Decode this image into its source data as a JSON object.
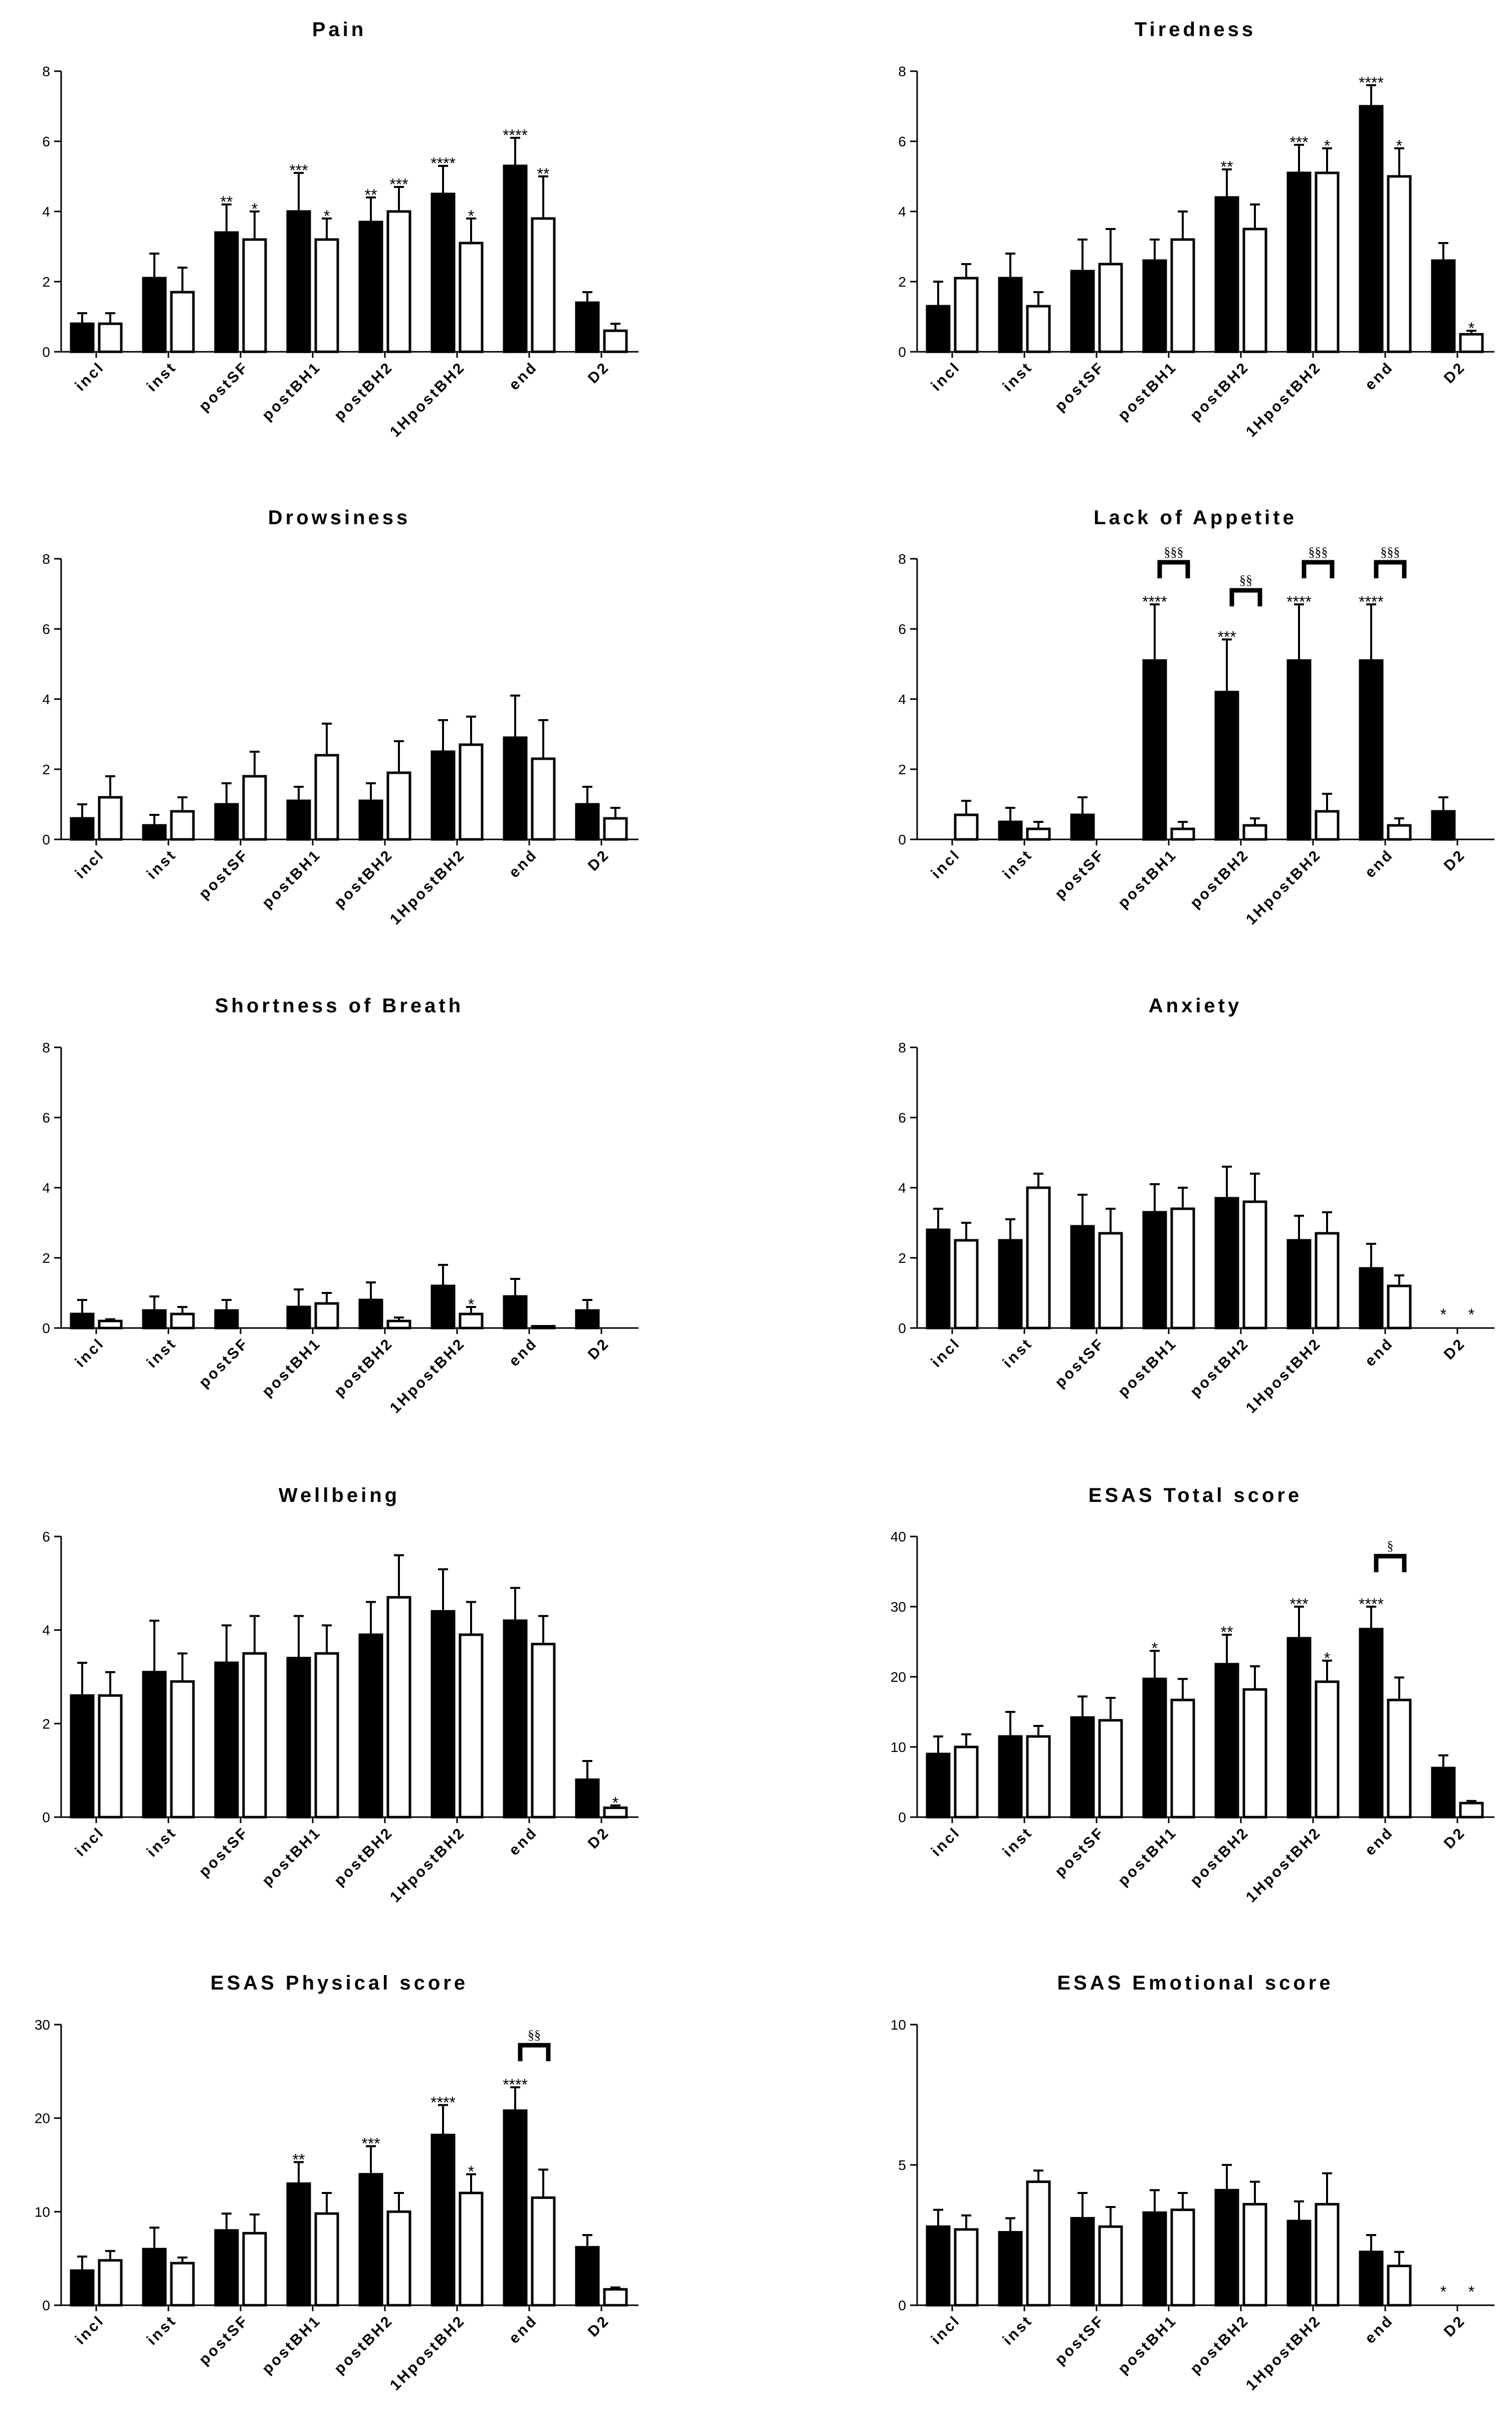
{
  "chart_data": [
    {
      "type": "bar",
      "title": "Pain",
      "categories": [
        "incl",
        "inst",
        "postSF",
        "postBH1",
        "postBH2",
        "1HpostBH2",
        "end",
        "D2"
      ],
      "ylim": [
        0,
        8
      ],
      "yticks": [
        "0",
        "2",
        "4",
        "6",
        "8"
      ],
      "series": [
        {
          "name": "filled",
          "values": [
            0.8,
            2.1,
            3.4,
            4.0,
            3.7,
            4.5,
            5.3,
            1.4
          ],
          "errors": [
            0.3,
            0.7,
            0.8,
            1.1,
            0.7,
            0.8,
            0.8,
            0.3
          ],
          "marks": [
            "",
            "",
            "**",
            "***",
            "**",
            "****",
            "****",
            ""
          ]
        },
        {
          "name": "open",
          "values": [
            0.8,
            1.7,
            3.2,
            3.2,
            4.0,
            3.1,
            3.8,
            0.6
          ],
          "errors": [
            0.3,
            0.7,
            0.8,
            0.6,
            0.7,
            0.7,
            1.2,
            0.2
          ],
          "marks": [
            "",
            "",
            "*",
            "*",
            "***",
            "*",
            "**",
            ""
          ]
        }
      ],
      "brackets": []
    },
    {
      "type": "bar",
      "title": "Tiredness",
      "categories": [
        "incl",
        "inst",
        "postSF",
        "postBH1",
        "postBH2",
        "1HpostBH2",
        "end",
        "D2"
      ],
      "ylim": [
        0,
        8
      ],
      "yticks": [
        "0",
        "2",
        "4",
        "6",
        "8"
      ],
      "series": [
        {
          "name": "filled",
          "values": [
            1.3,
            2.1,
            2.3,
            2.6,
            4.4,
            5.1,
            7.0,
            2.6
          ],
          "errors": [
            0.7,
            0.7,
            0.9,
            0.6,
            0.8,
            0.8,
            0.6,
            0.5
          ],
          "marks": [
            "",
            "",
            "",
            "",
            "**",
            "***",
            "****",
            ""
          ]
        },
        {
          "name": "open",
          "values": [
            2.1,
            1.3,
            2.5,
            3.2,
            3.5,
            5.1,
            5.0,
            0.5
          ],
          "errors": [
            0.4,
            0.4,
            1.0,
            0.8,
            0.7,
            0.7,
            0.8,
            0.1
          ],
          "marks": [
            "",
            "",
            "",
            "",
            "",
            "*",
            "*",
            "*"
          ]
        }
      ],
      "brackets": []
    },
    {
      "type": "bar",
      "title": "Drowsiness",
      "categories": [
        "incl",
        "inst",
        "postSF",
        "postBH1",
        "postBH2",
        "1HpostBH2",
        "end",
        "D2"
      ],
      "ylim": [
        0,
        8
      ],
      "yticks": [
        "0",
        "2",
        "4",
        "6",
        "8"
      ],
      "series": [
        {
          "name": "filled",
          "values": [
            0.6,
            0.4,
            1.0,
            1.1,
            1.1,
            2.5,
            2.9,
            1.0
          ],
          "errors": [
            0.4,
            0.3,
            0.6,
            0.4,
            0.5,
            0.9,
            1.2,
            0.5
          ],
          "marks": [
            "",
            "",
            "",
            "",
            "",
            "",
            "",
            ""
          ]
        },
        {
          "name": "open",
          "values": [
            1.2,
            0.8,
            1.8,
            2.4,
            1.9,
            2.7,
            2.3,
            0.6
          ],
          "errors": [
            0.6,
            0.4,
            0.7,
            0.9,
            0.9,
            0.8,
            1.1,
            0.3
          ],
          "marks": [
            "",
            "",
            "",
            "",
            "",
            "",
            "",
            ""
          ]
        }
      ],
      "brackets": []
    },
    {
      "type": "bar",
      "title": "Lack of Appetite",
      "categories": [
        "incl",
        "inst",
        "postSF",
        "postBH1",
        "postBH2",
        "1HpostBH2",
        "end",
        "D2"
      ],
      "ylim": [
        0,
        8
      ],
      "yticks": [
        "0",
        "2",
        "4",
        "6",
        "8"
      ],
      "series": [
        {
          "name": "filled",
          "values": [
            0.0,
            0.5,
            0.7,
            5.1,
            4.2,
            5.1,
            5.1,
            0.8
          ],
          "errors": [
            0.0,
            0.4,
            0.5,
            1.6,
            1.5,
            1.6,
            1.6,
            0.4
          ],
          "marks": [
            "",
            "",
            "",
            "****",
            "***",
            "****",
            "****",
            ""
          ]
        },
        {
          "name": "open",
          "values": [
            0.7,
            0.3,
            0.0,
            0.3,
            0.4,
            0.8,
            0.4,
            0.0
          ],
          "errors": [
            0.4,
            0.2,
            0.0,
            0.2,
            0.2,
            0.5,
            0.2,
            0.0
          ],
          "marks": [
            "",
            "",
            "",
            "",
            "",
            "",
            "",
            ""
          ]
        }
      ],
      "brackets": [
        {
          "category": 3,
          "value": 7.9,
          "label": "§§§"
        },
        {
          "category": 4,
          "value": 7.1,
          "label": "§§"
        },
        {
          "category": 5,
          "value": 7.9,
          "label": "§§§"
        },
        {
          "category": 6,
          "value": 7.9,
          "label": "§§§"
        }
      ]
    },
    {
      "type": "bar",
      "title": "Shortness of Breath",
      "categories": [
        "incl",
        "inst",
        "postSF",
        "postBH1",
        "postBH2",
        "1HpostBH2",
        "end",
        "D2"
      ],
      "ylim": [
        0,
        8
      ],
      "yticks": [
        "0",
        "2",
        "4",
        "6",
        "8"
      ],
      "series": [
        {
          "name": "filled",
          "values": [
            0.4,
            0.5,
            0.5,
            0.6,
            0.8,
            1.2,
            0.9,
            0.5
          ],
          "errors": [
            0.4,
            0.4,
            0.3,
            0.5,
            0.5,
            0.6,
            0.5,
            0.3
          ],
          "marks": [
            "",
            "",
            "",
            "",
            "",
            "",
            "",
            ""
          ]
        },
        {
          "name": "open",
          "values": [
            0.2,
            0.4,
            0.0,
            0.7,
            0.2,
            0.4,
            0.05,
            0.0
          ],
          "errors": [
            0.05,
            0.2,
            0.0,
            0.3,
            0.1,
            0.2,
            0.0,
            0.0
          ],
          "marks": [
            "",
            "",
            "",
            "",
            "",
            "*",
            "",
            ""
          ]
        }
      ],
      "brackets": []
    },
    {
      "type": "bar",
      "title": "Anxiety",
      "categories": [
        "incl",
        "inst",
        "postSF",
        "postBH1",
        "postBH2",
        "1HpostBH2",
        "end",
        "D2"
      ],
      "ylim": [
        0,
        8
      ],
      "yticks": [
        "0",
        "2",
        "4",
        "6",
        "8"
      ],
      "series": [
        {
          "name": "filled",
          "values": [
            2.8,
            2.5,
            2.9,
            3.3,
            3.7,
            2.5,
            1.7,
            0.0
          ],
          "errors": [
            0.6,
            0.6,
            0.9,
            0.8,
            0.9,
            0.7,
            0.7,
            0.0
          ],
          "marks": [
            "",
            "",
            "",
            "",
            "",
            "",
            "",
            "*"
          ]
        },
        {
          "name": "open",
          "values": [
            2.5,
            4.0,
            2.7,
            3.4,
            3.6,
            2.7,
            1.2,
            0.0
          ],
          "errors": [
            0.5,
            0.4,
            0.7,
            0.6,
            0.8,
            0.6,
            0.3,
            0.0
          ],
          "marks": [
            "",
            "",
            "",
            "",
            "",
            "",
            "",
            "*"
          ]
        }
      ],
      "brackets": []
    },
    {
      "type": "bar",
      "title": "Wellbeing",
      "categories": [
        "incl",
        "inst",
        "postSF",
        "postBH1",
        "postBH2",
        "1HpostBH2",
        "end",
        "D2"
      ],
      "ylim": [
        0,
        6
      ],
      "yticks": [
        "0",
        "2",
        "4",
        "6"
      ],
      "series": [
        {
          "name": "filled",
          "values": [
            2.6,
            3.1,
            3.3,
            3.4,
            3.9,
            4.4,
            4.2,
            0.8
          ],
          "errors": [
            0.7,
            1.1,
            0.8,
            0.9,
            0.7,
            0.9,
            0.7,
            0.4
          ],
          "marks": [
            "",
            "",
            "",
            "",
            "",
            "",
            "",
            ""
          ]
        },
        {
          "name": "open",
          "values": [
            2.6,
            2.9,
            3.5,
            3.5,
            4.7,
            3.9,
            3.7,
            0.2
          ],
          "errors": [
            0.5,
            0.6,
            0.8,
            0.6,
            0.9,
            0.7,
            0.6,
            0.05
          ],
          "marks": [
            "",
            "",
            "",
            "",
            "",
            "",
            "",
            "*"
          ]
        }
      ],
      "brackets": []
    },
    {
      "type": "bar",
      "title": "ESAS Total score",
      "categories": [
        "incl",
        "inst",
        "postSF",
        "postBH1",
        "postBH2",
        "1HpostBH2",
        "end",
        "D2"
      ],
      "ylim": [
        0,
        40
      ],
      "yticks": [
        "0",
        "10",
        "20",
        "30",
        "40"
      ],
      "series": [
        {
          "name": "filled",
          "values": [
            9.0,
            11.5,
            14.2,
            19.7,
            21.8,
            25.5,
            26.8,
            7.0
          ],
          "errors": [
            2.5,
            3.5,
            3.0,
            4.0,
            4.2,
            4.5,
            3.2,
            1.8
          ],
          "marks": [
            "",
            "",
            "",
            "*",
            "**",
            "***",
            "****",
            ""
          ]
        },
        {
          "name": "open",
          "values": [
            10.0,
            11.5,
            13.8,
            16.7,
            18.2,
            19.3,
            16.7,
            2.0
          ],
          "errors": [
            1.8,
            1.5,
            3.2,
            3.0,
            3.3,
            3.0,
            3.2,
            0.3
          ],
          "marks": [
            "",
            "",
            "",
            "",
            "",
            "*",
            "",
            ""
          ]
        }
      ],
      "brackets": [
        {
          "category": 6,
          "value": 37.2,
          "label": "§"
        }
      ]
    },
    {
      "type": "bar",
      "title": "ESAS Physical score",
      "categories": [
        "incl",
        "inst",
        "postSF",
        "postBH1",
        "postBH2",
        "1HpostBH2",
        "end",
        "D2"
      ],
      "ylim": [
        0,
        30
      ],
      "yticks": [
        "0",
        "10",
        "20",
        "30"
      ],
      "series": [
        {
          "name": "filled",
          "values": [
            3.7,
            6.0,
            8.0,
            13.0,
            14.0,
            18.2,
            20.8,
            6.2
          ],
          "errors": [
            1.5,
            2.3,
            1.8,
            2.3,
            3.0,
            3.2,
            2.5,
            1.3
          ],
          "marks": [
            "",
            "",
            "",
            "**",
            "***",
            "****",
            "****",
            ""
          ]
        },
        {
          "name": "open",
          "values": [
            4.8,
            4.5,
            7.7,
            9.8,
            10.0,
            12.0,
            11.5,
            1.7
          ],
          "errors": [
            1.0,
            0.6,
            2.0,
            2.2,
            2.0,
            2.0,
            3.0,
            0.2
          ],
          "marks": [
            "",
            "",
            "",
            "",
            "",
            "*",
            "",
            ""
          ]
        }
      ],
      "brackets": [
        {
          "category": 6,
          "value": 27.8,
          "label": "§§"
        }
      ]
    },
    {
      "type": "bar",
      "title": "ESAS Emotional score",
      "categories": [
        "incl",
        "inst",
        "postSF",
        "postBH1",
        "postBH2",
        "1HpostBH2",
        "end",
        "D2"
      ],
      "ylim": [
        0,
        10
      ],
      "yticks": [
        "0",
        "5",
        "10"
      ],
      "series": [
        {
          "name": "filled",
          "values": [
            2.8,
            2.6,
            3.1,
            3.3,
            4.1,
            3.0,
            1.9,
            0.0
          ],
          "errors": [
            0.6,
            0.5,
            0.9,
            0.8,
            0.9,
            0.7,
            0.6,
            0.0
          ],
          "marks": [
            "",
            "",
            "",
            "",
            "",
            "",
            "",
            "*"
          ]
        },
        {
          "name": "open",
          "values": [
            2.7,
            4.4,
            2.8,
            3.4,
            3.6,
            3.6,
            1.4,
            0.0
          ],
          "errors": [
            0.5,
            0.4,
            0.7,
            0.6,
            0.8,
            1.1,
            0.5,
            0.0
          ],
          "marks": [
            "",
            "",
            "",
            "",
            "",
            "",
            "",
            "*"
          ]
        }
      ],
      "brackets": []
    }
  ]
}
